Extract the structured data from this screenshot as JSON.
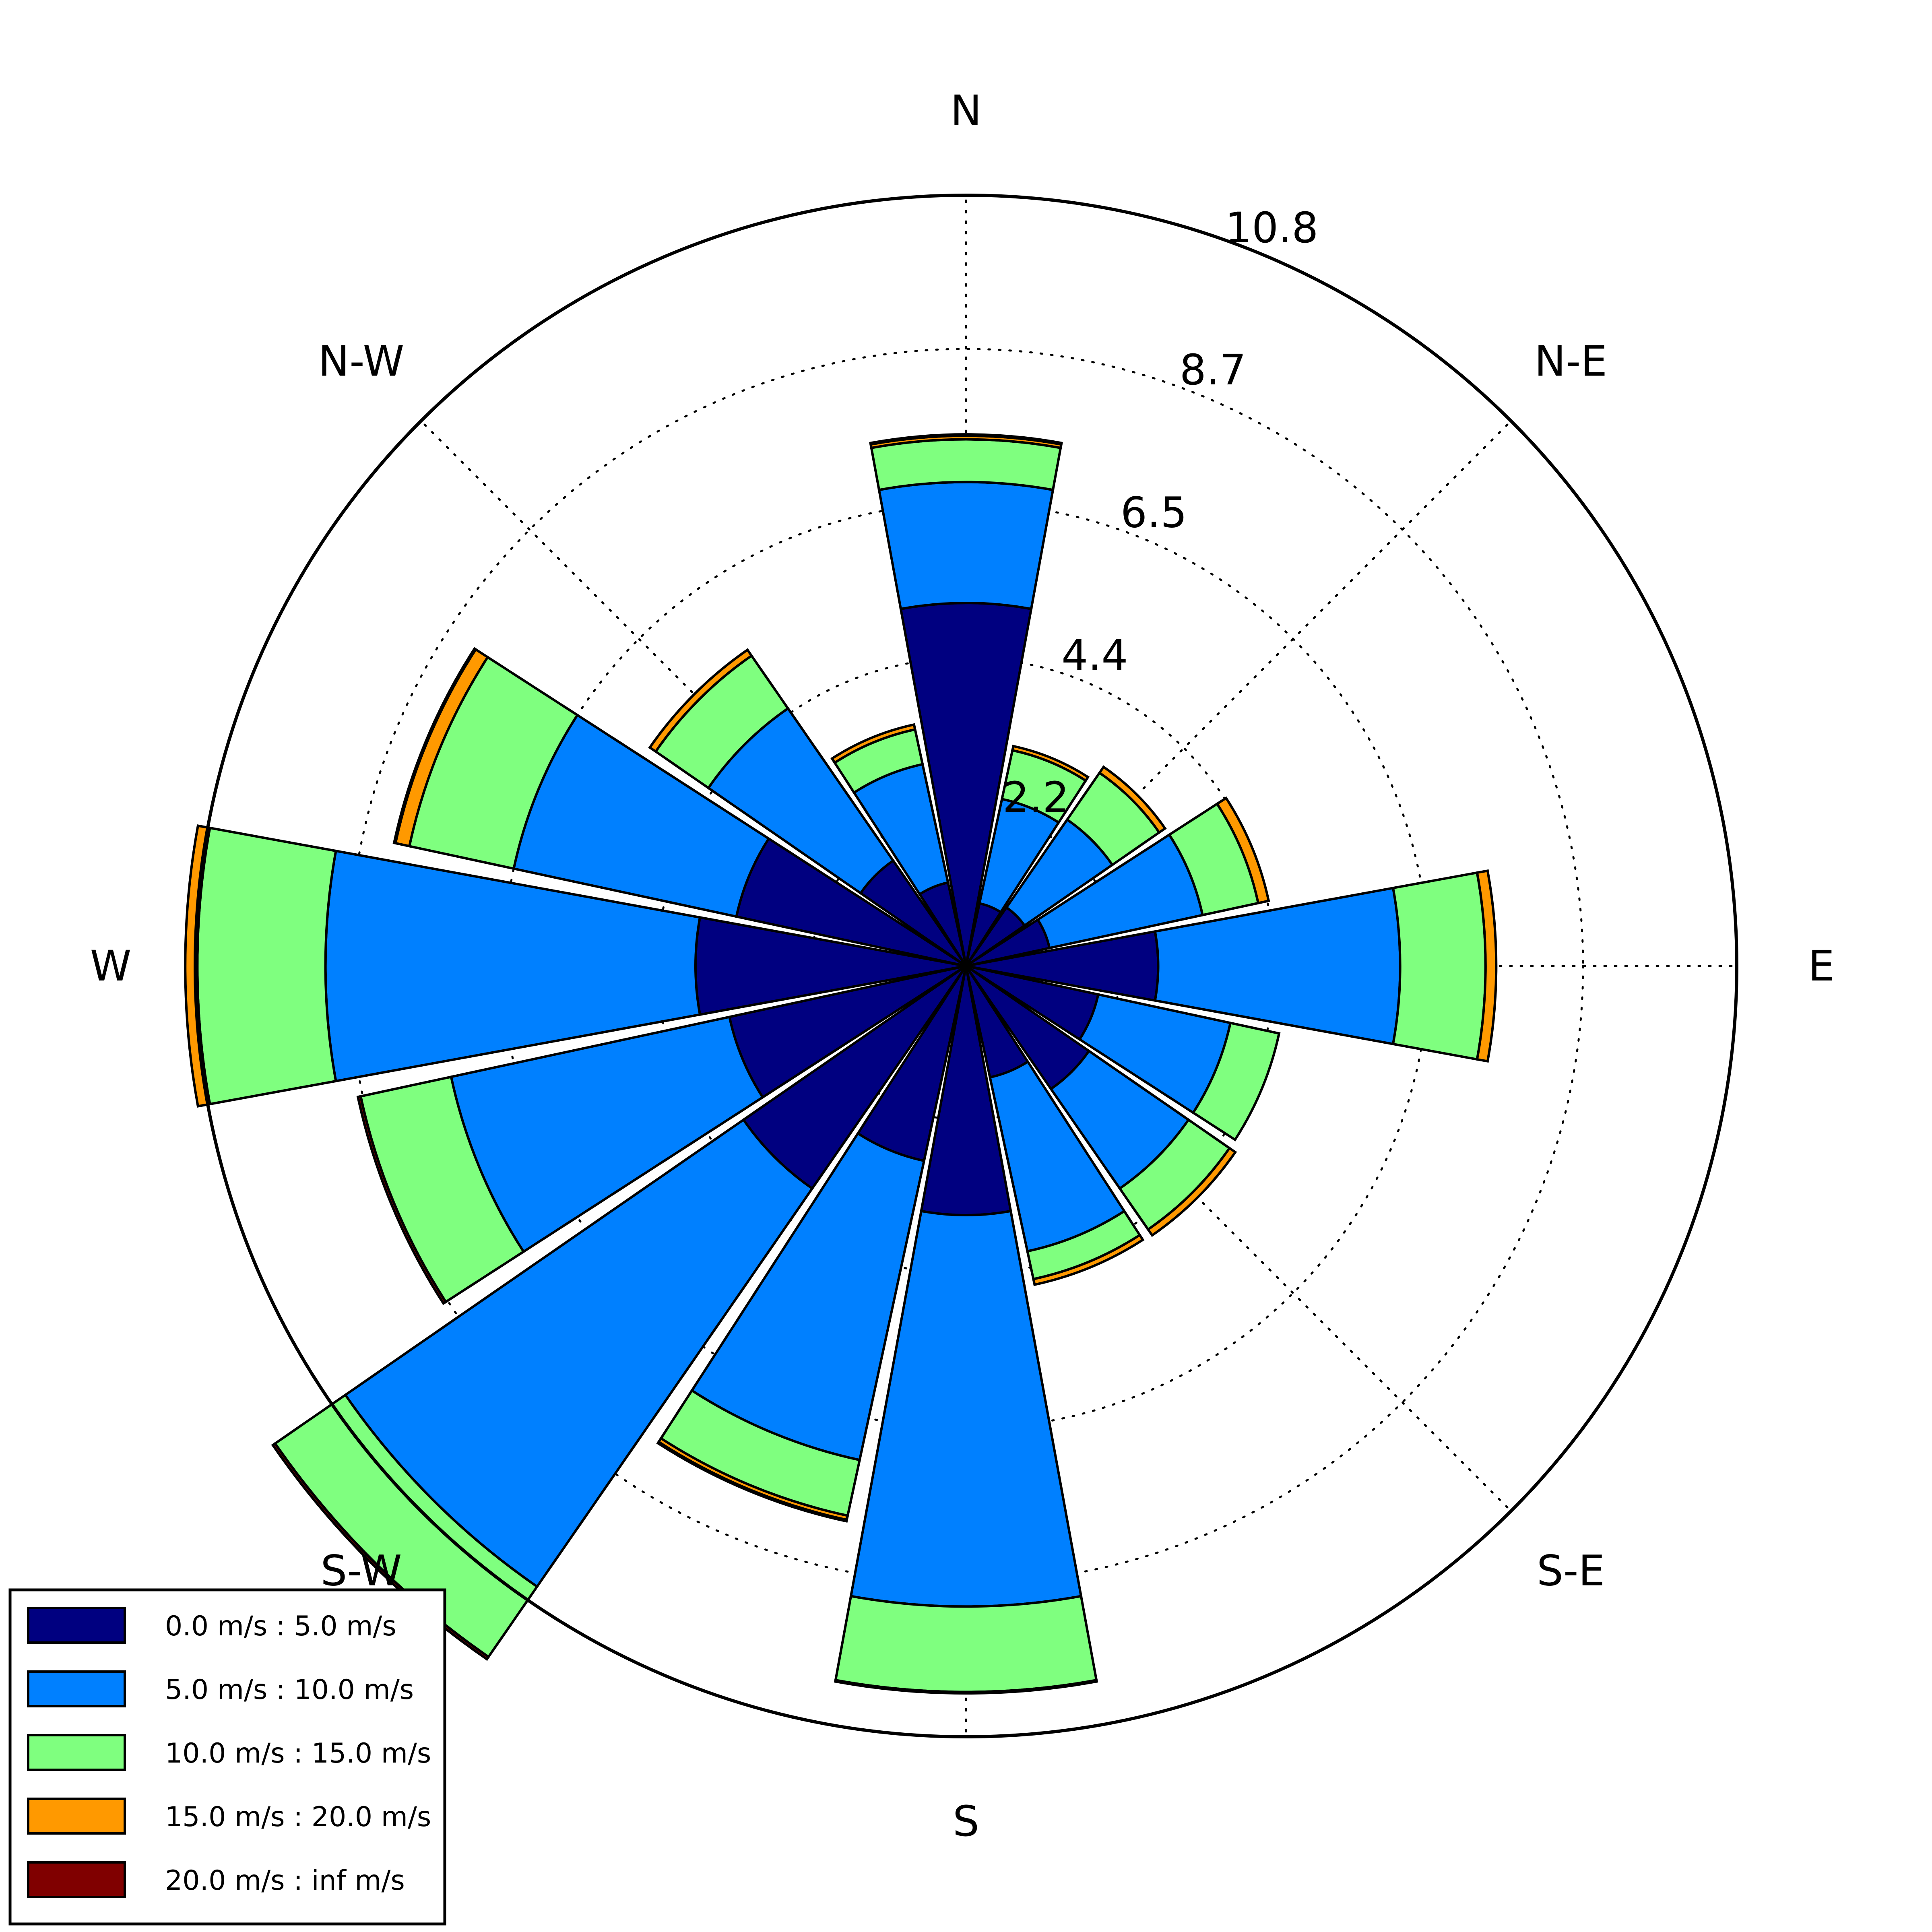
{
  "chart_data": {
    "type": "windrose",
    "title": "",
    "directions": [
      "N",
      "N-E",
      "E",
      "S-E",
      "S",
      "S-W",
      "W",
      "N-W"
    ],
    "sectors": 16,
    "sector_angles_deg": [
      0,
      22.5,
      45,
      67.5,
      90,
      112.5,
      135,
      157.5,
      180,
      202.5,
      225,
      247.5,
      270,
      292.5,
      315,
      337.5
    ],
    "radial_ticks": [
      "2.2",
      "4.4",
      "6.5",
      "8.7",
      "10.8"
    ],
    "radial_tick_values": [
      2.17,
      4.33,
      6.5,
      8.67,
      10.83
    ],
    "rmax": 10.83,
    "grid": true,
    "legend_position": "bottom-left",
    "series": [
      {
        "name": "0.0 m/s : 5.0 m/s",
        "color": "#000080",
        "values": [
          5.1,
          0.9,
          1.0,
          1.2,
          2.7,
          1.9,
          2.1,
          1.6,
          3.5,
          2.8,
          3.8,
          3.4,
          3.8,
          3.3,
          1.8,
          1.2
        ]
      },
      {
        "name": "5.0 m/s : 10.0 m/s",
        "color": "#0080ff",
        "values": [
          1.7,
          1.5,
          1.5,
          2.2,
          3.4,
          1.9,
          1.7,
          2.5,
          5.5,
          4.3,
          6.8,
          4.0,
          5.2,
          3.2,
          2.6,
          1.7
        ]
      },
      {
        "name": "10.0 m/s : 15.0 m/s",
        "color": "#7fff7f",
        "values": [
          0.6,
          0.7,
          0.8,
          0.8,
          1.2,
          0.7,
          0.7,
          0.4,
          1.2,
          0.8,
          1.2,
          1.3,
          1.8,
          1.5,
          0.9,
          0.5
        ]
      },
      {
        "name": "15.0 m/s : 20.0 m/s",
        "color": "#ff9900",
        "values": [
          0.05,
          0.06,
          0.1,
          0.15,
          0.15,
          0.0,
          0.1,
          0.08,
          0.0,
          0.06,
          0.0,
          0.0,
          0.17,
          0.2,
          0.1,
          0.07
        ]
      },
      {
        "name": "20.0 m/s : inf m/s",
        "color": "#800000",
        "values": [
          0.02,
          0.0,
          0.0,
          0.0,
          0.0,
          0.0,
          0.0,
          0.0,
          0.02,
          0.02,
          0.04,
          0.04,
          0.0,
          0.02,
          0.0,
          0.0
        ]
      }
    ]
  }
}
